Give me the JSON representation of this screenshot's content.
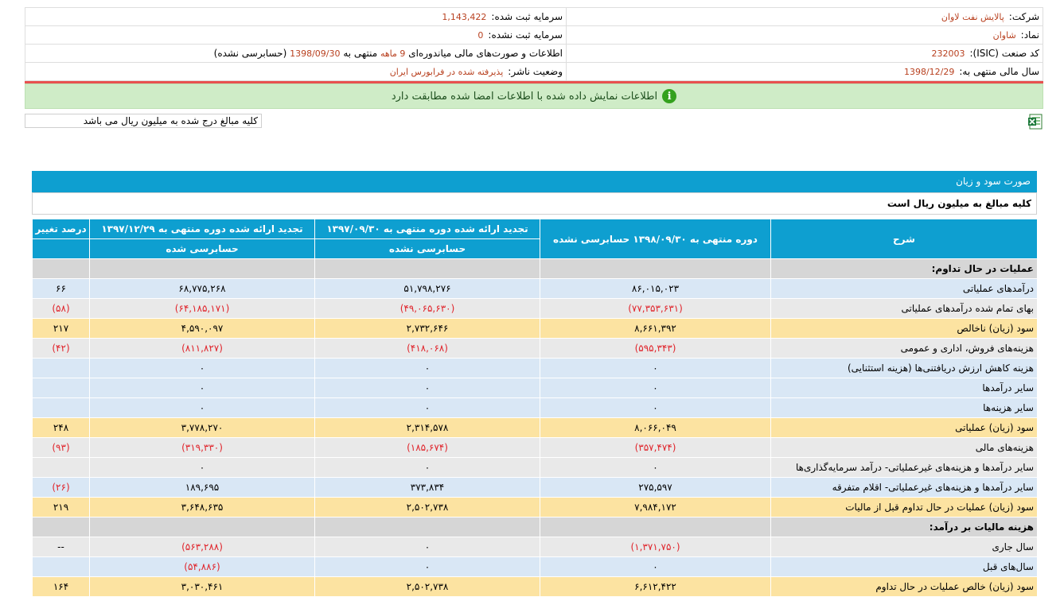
{
  "info": {
    "company_label": "شرکت:",
    "company_value": "پالایش نفت لاوان",
    "registered_capital_label": "سرمایه ثبت شده:",
    "registered_capital_value": "1,143,422",
    "symbol_label": "نماد:",
    "symbol_value": "شاوان",
    "unregistered_capital_label": "سرمایه ثبت نشده:",
    "unregistered_capital_value": "0",
    "isic_label": "کد صنعت (ISIC):",
    "isic_value": "232003",
    "report_prefix": "اطلاعات و صورت‌های مالی میاندوره‌ای",
    "report_period": "9 ماهه",
    "report_mid": "منتهی به",
    "report_date": "1398/09/30",
    "report_suffix": "(حسابرسی نشده)",
    "fiscal_year_label": "سال مالی منتهی به:",
    "fiscal_year_value": "1398/12/29",
    "publisher_status_label": "وضعیت ناشر:",
    "publisher_status_value": "پذیرفته شده در فرابورس ایران"
  },
  "banner": {
    "text": "اطلاعات نمایش داده شده با اطلاعات امضا شده مطابقت دارد",
    "icon": "info-icon"
  },
  "unit_note": "کلیه مبالغ درج شده به میلیون ریال می باشد",
  "excel_icon": "excel-export-icon",
  "statement": {
    "title": "صورت سود و زیان",
    "subtitle": "کلیه مبالغ به میلیون ریال است",
    "headers": {
      "desc": "شرح",
      "col1": "دوره منتهی به ۱۳۹۸/۰۹/۳۰ حسابرسی نشده",
      "col2": "تجدید ارائه شده دوره منتهی به ۱۳۹۷/۰۹/۳۰",
      "col2_sub": "حسابرسی نشده",
      "col3": "تجدید ارائه شده دوره منتهی به ۱۳۹۷/۱۲/۲۹",
      "col3_sub": "حسابرسی شده",
      "col4": "درصد تغییر"
    },
    "rows": [
      {
        "type": "head",
        "desc": "عملیات در حال تداوم:",
        "c1": "",
        "c2": "",
        "c3": "",
        "c4": ""
      },
      {
        "type": "blue",
        "desc": "درآمدهای عملیاتی",
        "c1": "۸۶,۰۱۵,۰۲۳",
        "c2": "۵۱,۷۹۸,۲۷۶",
        "c3": "۶۸,۷۷۵,۲۶۸",
        "c4": "۶۶"
      },
      {
        "type": "gray",
        "desc": "بهای تمام شده درآمدهای عملیاتی",
        "c1": "(۷۷,۳۵۳,۶۳۱)",
        "c2": "(۴۹,۰۶۵,۶۳۰)",
        "c3": "(۶۴,۱۸۵,۱۷۱)",
        "c4": "(۵۸)"
      },
      {
        "type": "orange",
        "desc": "سود (زیان) ناخالص",
        "c1": "۸,۶۶۱,۳۹۲",
        "c2": "۲,۷۳۲,۶۴۶",
        "c3": "۴,۵۹۰,۰۹۷",
        "c4": "۲۱۷"
      },
      {
        "type": "gray",
        "desc": "هزینه‌های فروش، اداری و عمومی",
        "c1": "(۵۹۵,۳۴۳)",
        "c2": "(۴۱۸,۰۶۸)",
        "c3": "(۸۱۱,۸۲۷)",
        "c4": "(۴۲)"
      },
      {
        "type": "blue",
        "desc": "هزینه کاهش ارزش دریافتنی‌ها (هزینه استثنایی)",
        "c1": "۰",
        "c2": "۰",
        "c3": "۰",
        "c4": ""
      },
      {
        "type": "blue",
        "desc": "سایر درآمدها",
        "c1": "۰",
        "c2": "۰",
        "c3": "۰",
        "c4": ""
      },
      {
        "type": "blue",
        "desc": "سایر هزینه‌ها",
        "c1": "۰",
        "c2": "۰",
        "c3": "۰",
        "c4": ""
      },
      {
        "type": "orange",
        "desc": "سود (زیان) عملیاتی",
        "c1": "۸,۰۶۶,۰۴۹",
        "c2": "۲,۳۱۴,۵۷۸",
        "c3": "۳,۷۷۸,۲۷۰",
        "c4": "۲۴۸"
      },
      {
        "type": "gray",
        "desc": "هزینه‌های مالی",
        "c1": "(۳۵۷,۴۷۴)",
        "c2": "(۱۸۵,۶۷۴)",
        "c3": "(۳۱۹,۳۳۰)",
        "c4": "(۹۳)"
      },
      {
        "type": "gray",
        "desc": "سایر درآمدها و هزینه‌های غیرعملیاتی- درآمد سرمایه‌گذاری‌ها",
        "c1": "۰",
        "c2": "۰",
        "c3": "۰",
        "c4": ""
      },
      {
        "type": "blue",
        "desc": "سایر درآمدها و هزینه‌های غیرعملیاتی- اقلام متفرقه",
        "c1": "۲۷۵,۵۹۷",
        "c2": "۳۷۳,۸۳۴",
        "c3": "۱۸۹,۶۹۵",
        "c4": "(۲۶)"
      },
      {
        "type": "orange",
        "desc": "سود (زیان) عملیات در حال تداوم قبل از مالیات",
        "c1": "۷,۹۸۴,۱۷۲",
        "c2": "۲,۵۰۲,۷۳۸",
        "c3": "۳,۶۴۸,۶۳۵",
        "c4": "۲۱۹"
      },
      {
        "type": "head",
        "desc": "هزینه مالیات بر درآمد:",
        "c1": "",
        "c2": "",
        "c3": "",
        "c4": ""
      },
      {
        "type": "gray",
        "desc": "سال جاری",
        "c1": "(۱,۳۷۱,۷۵۰)",
        "c2": "۰",
        "c3": "(۵۶۳,۲۸۸)",
        "c4": "--"
      },
      {
        "type": "blue",
        "desc": "سال‌های قبل",
        "c1": "۰",
        "c2": "۰",
        "c3": "(۵۴,۸۸۶)",
        "c4": ""
      },
      {
        "type": "orange",
        "desc": "سود (زیان) خالص عملیات در حال تداوم",
        "c1": "۶,۶۱۲,۴۲۲",
        "c2": "۲,۵۰۲,۷۳۸",
        "c3": "۳,۰۳۰,۴۶۱",
        "c4": "۱۶۴"
      }
    ]
  }
}
